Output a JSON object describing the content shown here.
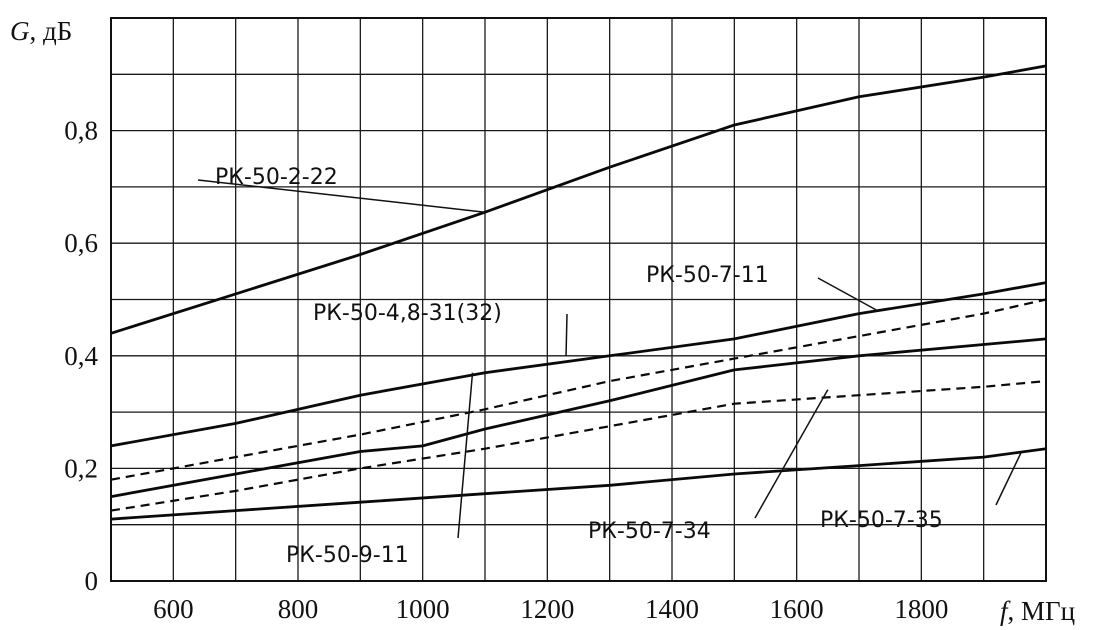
{
  "chart_data": {
    "type": "line",
    "ylabel_var": "G",
    "ylabel_unit": "дБ",
    "xlabel_var": "f",
    "xlabel_unit": "МГц",
    "xlim": [
      500,
      2000
    ],
    "ylim": [
      0,
      1.0
    ],
    "grid": true,
    "x_ticks": [
      600,
      800,
      1000,
      1200,
      1400,
      1600,
      1800
    ],
    "x_tick_labels": [
      "600",
      "800",
      "1000",
      "1200",
      "1400",
      "1600",
      "1800"
    ],
    "y_ticks": [
      0,
      0.2,
      0.4,
      0.6,
      0.8
    ],
    "y_tick_labels": [
      "0",
      "0,2",
      "0,4",
      "0,6",
      "0,8"
    ],
    "series": [
      {
        "name": "РК-50-2-22",
        "line_style": "solid",
        "x": [
          500,
          700,
          900,
          1100,
          1300,
          1500,
          1700,
          1900,
          2000
        ],
        "y": [
          0.44,
          0.51,
          0.58,
          0.655,
          0.735,
          0.81,
          0.86,
          0.895,
          0.915
        ]
      },
      {
        "name": "РК-50-7-11",
        "line_style": "solid",
        "x": [
          500,
          700,
          900,
          1100,
          1300,
          1500,
          1700,
          1900,
          2000
        ],
        "y": [
          0.24,
          0.28,
          0.33,
          0.37,
          0.4,
          0.43,
          0.475,
          0.51,
          0.53
        ]
      },
      {
        "name": "РК-50-4,8-31(32)",
        "line_style": "dashed",
        "x": [
          500,
          700,
          900,
          1100,
          1300,
          1500,
          1700,
          1900,
          2000
        ],
        "y": [
          0.18,
          0.22,
          0.26,
          0.305,
          0.355,
          0.395,
          0.435,
          0.475,
          0.5
        ]
      },
      {
        "name": "РК-50-9-11",
        "line_style": "solid",
        "x": [
          500,
          700,
          900,
          1000,
          1100,
          1300,
          1500,
          1700,
          1900,
          2000
        ],
        "y": [
          0.15,
          0.19,
          0.23,
          0.24,
          0.27,
          0.32,
          0.375,
          0.4,
          0.42,
          0.43
        ]
      },
      {
        "name": "РК-50-7-34",
        "line_style": "dashed",
        "x": [
          500,
          700,
          900,
          1100,
          1300,
          1500,
          1700,
          1900,
          2000
        ],
        "y": [
          0.125,
          0.16,
          0.2,
          0.235,
          0.275,
          0.315,
          0.33,
          0.345,
          0.355
        ]
      },
      {
        "name": "РК-50-7-35",
        "line_style": "solid",
        "x": [
          500,
          700,
          900,
          1100,
          1300,
          1500,
          1700,
          1900,
          2000
        ],
        "y": [
          0.11,
          0.125,
          0.14,
          0.155,
          0.17,
          0.19,
          0.205,
          0.22,
          0.235
        ]
      }
    ]
  }
}
